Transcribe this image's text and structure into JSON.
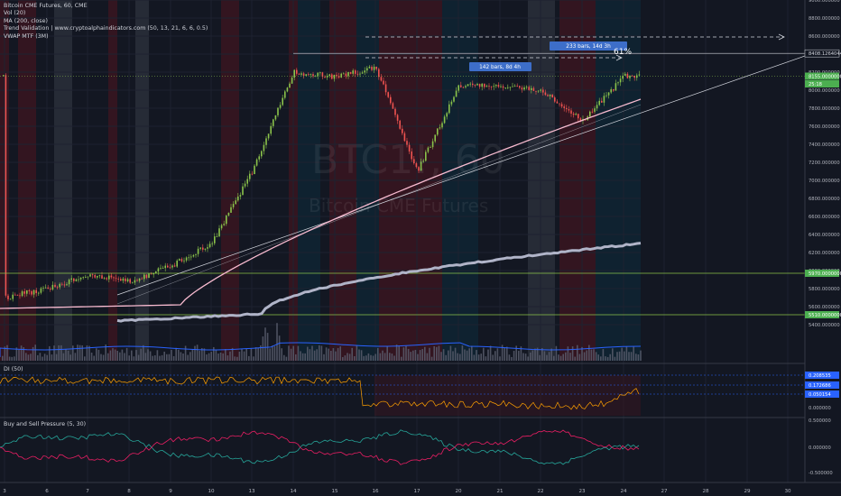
{
  "legend": {
    "title": "Bitcoin CME Futures, 60, CME",
    "vol": "Vol (20)",
    "ma": "MA (200, close)",
    "trend": "Trend Validation | www.cryptoalphaindicators.com (50, 13, 21, 6, 6, 0.5)",
    "vwap": "VWAP MTF (3M)"
  },
  "watermark": {
    "symbol": "BTC1!, 60",
    "description": "Bitcoin CME Futures"
  },
  "di_label": "DI (50)",
  "bsp_label": "Buy and Sell Pressure (5, 30)",
  "annotations": {
    "measure1": "233 bars, 14d 3h",
    "measure2": "142 bars, 8d 4h",
    "percent": "61%"
  },
  "price_axis": {
    "ticks": [
      "9000.000000",
      "8800.000000",
      "8600.000000",
      "8400.000000",
      "8200.000000",
      "8000.000000",
      "7800.000000",
      "7600.000000",
      "7400.000000",
      "7200.000000",
      "7000.000000",
      "6800.000000",
      "6600.000000",
      "6400.000000",
      "6200.000000",
      "6000.000000",
      "5800.000000",
      "5600.000000",
      "5400.000000"
    ],
    "labels": [
      {
        "value": 8408.1264044,
        "text": "8408.1264044",
        "style": "white"
      },
      {
        "value": 8155,
        "text": "8155.0000000",
        "style": "green"
      },
      {
        "value": 8070,
        "text": "25:18",
        "style": "green"
      },
      {
        "value": 5970,
        "text": "5970.0000000",
        "style": "green"
      },
      {
        "value": 5510,
        "text": "5510.0000000",
        "style": "green"
      }
    ]
  },
  "di_axis": {
    "labels": [
      "0.208535",
      "0.172686",
      "0.050154"
    ],
    "zero": "0.000000"
  },
  "bsp_axis": {
    "ticks": [
      "0.500000",
      "0.000000",
      "-0.500000"
    ]
  },
  "time_axis": {
    "labels": [
      "3",
      "6",
      "7",
      "8",
      "9",
      "10",
      "13",
      "14",
      "15",
      "16",
      "17",
      "20",
      "21",
      "22",
      "23",
      "24",
      "27",
      "28",
      "29",
      "30"
    ]
  },
  "colors": {
    "background": "#131722",
    "candle_up": "#8bc34a",
    "candle_down": "#ef5350",
    "ma": "#f8bbd0",
    "vwap": "#b0b4c8",
    "level": "#8bc34a",
    "volume_ma": "#2962ff",
    "di": "#ffa000",
    "buy": "#26a69a",
    "sell": "#e91e63"
  },
  "chart_data": {
    "type": "line",
    "title": "Bitcoin CME Futures, 60, CME",
    "x_axis": "date (days of month)",
    "price_range": [
      5300,
      9200
    ],
    "price_points": [
      {
        "x": "3",
        "y": 5700
      },
      {
        "x": "6",
        "y": 5800
      },
      {
        "x": "7",
        "y": 5950
      },
      {
        "x": "8",
        "y": 5880
      },
      {
        "x": "9",
        "y": 6050
      },
      {
        "x": "10",
        "y": 6300
      },
      {
        "x": "13",
        "y": 7100
      },
      {
        "x": "14",
        "y": 8200
      },
      {
        "x": "15",
        "y": 8150
      },
      {
        "x": "16",
        "y": 8250
      },
      {
        "x": "17",
        "y": 7100
      },
      {
        "x": "20",
        "y": 8050
      },
      {
        "x": "21",
        "y": 8050
      },
      {
        "x": "22",
        "y": 8000
      },
      {
        "x": "23",
        "y": 7650
      },
      {
        "x": "24",
        "y": 8155
      }
    ],
    "ma200_end": 7900,
    "vwap_end": 6300,
    "horizontal_levels": [
      8408.1264044,
      8155,
      5970,
      5510
    ],
    "measure_percent": 61,
    "grid": true,
    "legend_position": "top-left"
  }
}
